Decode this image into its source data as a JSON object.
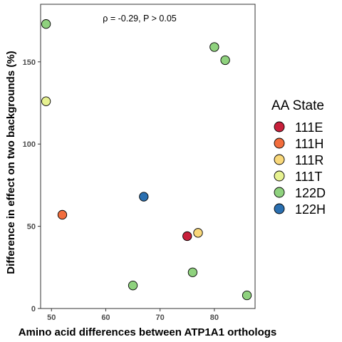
{
  "chart_data": {
    "type": "scatter",
    "xlabel": "Amino acid differences between ATP1A1 orthologs",
    "ylabel": "Difference in effect on two backgrounds (%)",
    "annotation": "ρ = -0.29, P > 0.05",
    "xlim": [
      48,
      87.5
    ],
    "ylim": [
      0,
      185
    ],
    "x_ticks": [
      50,
      60,
      70,
      80
    ],
    "y_ticks": [
      0,
      50,
      100,
      150
    ],
    "grid": false,
    "legend": {
      "title": "AA State",
      "placement": "right",
      "entries": [
        {
          "label": "111E",
          "color": "#c8203b"
        },
        {
          "label": "111H",
          "color": "#f26d3d"
        },
        {
          "label": "111R",
          "color": "#f9d87a"
        },
        {
          "label": "111T",
          "color": "#e7f291"
        },
        {
          "label": "122D",
          "color": "#8fd27e"
        },
        {
          "label": "122H",
          "color": "#2a6fb0"
        }
      ]
    },
    "points": [
      {
        "x": 49,
        "y": 173,
        "group": "122D"
      },
      {
        "x": 49,
        "y": 126,
        "group": "111T"
      },
      {
        "x": 52,
        "y": 57,
        "group": "111H"
      },
      {
        "x": 65,
        "y": 14,
        "group": "122D"
      },
      {
        "x": 67,
        "y": 68,
        "group": "122H"
      },
      {
        "x": 75,
        "y": 44,
        "group": "111E"
      },
      {
        "x": 76,
        "y": 22,
        "group": "122D"
      },
      {
        "x": 77,
        "y": 46,
        "group": "111R"
      },
      {
        "x": 80,
        "y": 159,
        "group": "122D"
      },
      {
        "x": 82,
        "y": 151,
        "group": "122D"
      },
      {
        "x": 86,
        "y": 8,
        "group": "122D"
      }
    ]
  }
}
